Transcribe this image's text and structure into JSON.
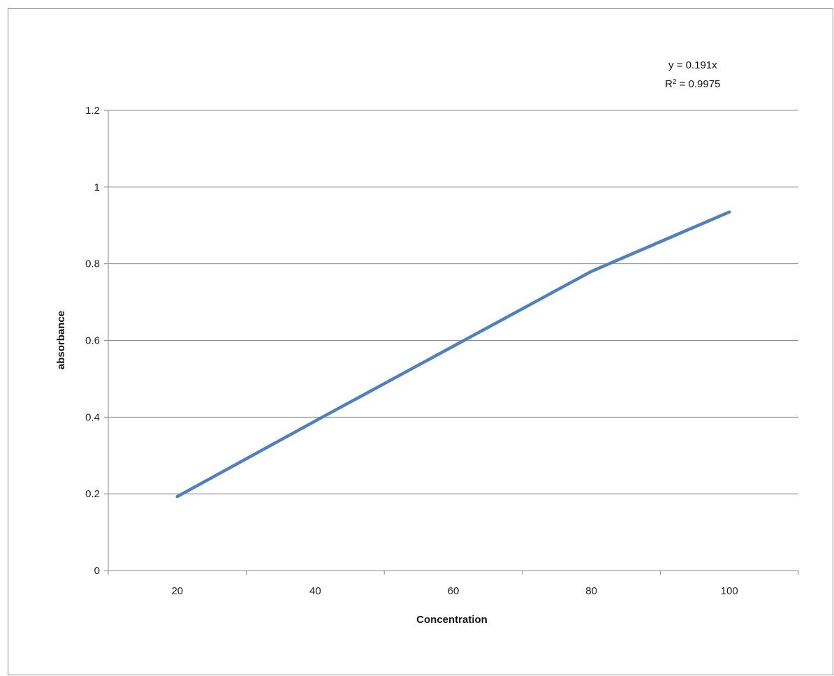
{
  "chart_data": {
    "type": "line",
    "xlabel": "Concentration",
    "ylabel": "absorbance",
    "x": [
      20,
      40,
      60,
      80,
      100
    ],
    "x_tick_labels": [
      "20",
      "40",
      "60",
      "80",
      "100"
    ],
    "y_tick_labels": [
      "0",
      "0.2",
      "0.4",
      "0.6",
      "0.8",
      "1",
      "1.2"
    ],
    "ylim": [
      0,
      1.2
    ],
    "grid": "horizontal",
    "series": [
      {
        "values": [
          0.193,
          0.39,
          0.585,
          0.78,
          0.935
        ],
        "color": "#4f81bd"
      }
    ],
    "trendline": {
      "slope": 0.191,
      "x_range": [
        20,
        100
      ],
      "color": "#000000",
      "equation_label": "y = 0.191x",
      "r2_label_prefix": "R",
      "r2_label_rest": " = 0.9975"
    }
  }
}
